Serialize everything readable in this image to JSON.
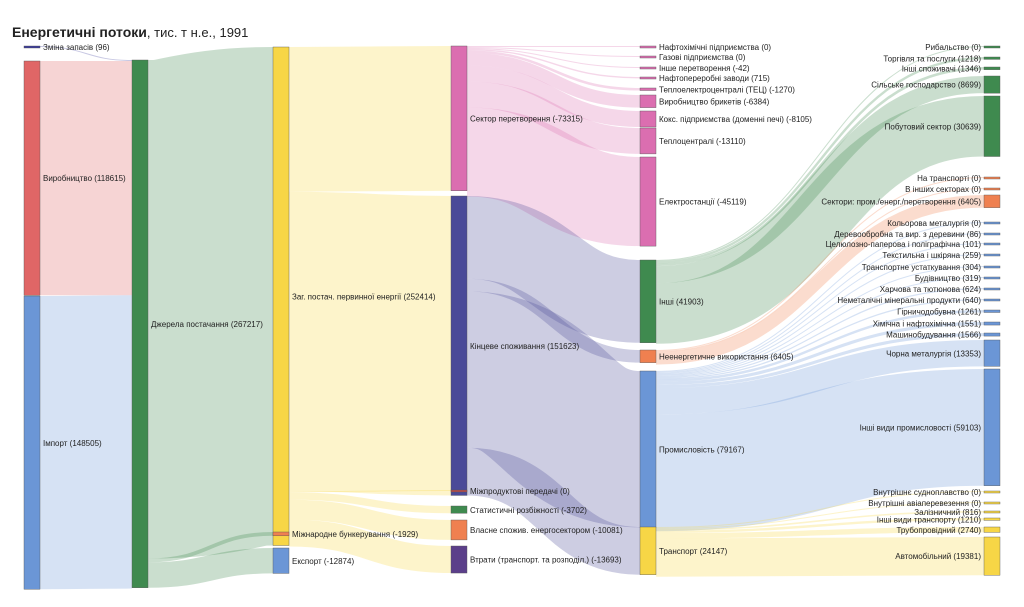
{
  "title": {
    "main": "Енергетичні потоки",
    "sub": ", тис. т н.е., 1991"
  },
  "chart_data": {
    "type": "sankey",
    "title": "Енергетичні потоки, тис. т н.е., 1991",
    "nodes": [
      {
        "id": "zmina",
        "label": "Зміна запасів (96)",
        "value": 96,
        "color": "#3b3b9a"
      },
      {
        "id": "vyrob",
        "label": "Виробництво (118615)",
        "value": 118615,
        "color": "#e06666"
      },
      {
        "id": "import",
        "label": "Імпорт (148505)",
        "value": 148505,
        "color": "#6b96d6"
      },
      {
        "id": "dzhere",
        "label": "Джерела постачання (267217)",
        "value": 267217,
        "color": "#3f8a4f"
      },
      {
        "id": "zag",
        "label": "Заг. постач. первинної енергії (252414)",
        "value": 252414,
        "color": "#f7d646"
      },
      {
        "id": "bunk",
        "label": "Міжнародне бункерування (-1929)",
        "value": 1929,
        "color": "#ef8050"
      },
      {
        "id": "eksport",
        "label": "Експорт (-12874)",
        "value": 12874,
        "color": "#6b96d6"
      },
      {
        "id": "sektor",
        "label": "Сектор перетворення (-73315)",
        "value": 73315,
        "color": "#db6eb0"
      },
      {
        "id": "kinc",
        "label": "Кінцеве споживання (151623)",
        "value": 151623,
        "color": "#4a4a98"
      },
      {
        "id": "mizhprod",
        "label": "Міжпродуктові передачі (0)",
        "value": 0,
        "color": "#b54a4a"
      },
      {
        "id": "stat",
        "label": "Статистичні розбіжності (-3702)",
        "value": 3702,
        "color": "#3f8a4f"
      },
      {
        "id": "vlasne",
        "label": "Власне спожив. енергосектором (-10081)",
        "value": 10081,
        "color": "#ef8050"
      },
      {
        "id": "vtraty",
        "label": "Втрати (транспорт. та розподіл.) (-13693)",
        "value": 13693,
        "color": "#5b3f8a"
      },
      {
        "id": "nafto",
        "label": "Нафтохімічні підприємства (0)",
        "value": 0,
        "color": "#db6eb0"
      },
      {
        "id": "gaz",
        "label": "Газові підприємства (0)",
        "value": 0,
        "color": "#db6eb0"
      },
      {
        "id": "inshe_per",
        "label": "Інше перетворення (-42)",
        "value": 42,
        "color": "#db6eb0"
      },
      {
        "id": "naftoper",
        "label": "Нафтопереробні заводи (715)",
        "value": 715,
        "color": "#db6eb0"
      },
      {
        "id": "tec",
        "label": "Теплоелектроцентралі (ТЕЦ) (-1270)",
        "value": 1270,
        "color": "#db6eb0"
      },
      {
        "id": "bryket",
        "label": "Виробництво брикетів (-6384)",
        "value": 6384,
        "color": "#db6eb0"
      },
      {
        "id": "koks",
        "label": "Кокс. підприємства (доменні печі) (-8105)",
        "value": 8105,
        "color": "#db6eb0"
      },
      {
        "id": "teplo",
        "label": "Теплоцентралі (-13110)",
        "value": 13110,
        "color": "#db6eb0"
      },
      {
        "id": "elektro",
        "label": "Електростанції (-45119)",
        "value": 45119,
        "color": "#db6eb0"
      },
      {
        "id": "inshi",
        "label": "Інші (41903)",
        "value": 41903,
        "color": "#3f8a4f"
      },
      {
        "id": "neenerg",
        "label": "Неенергетичне використання (6405)",
        "value": 6405,
        "color": "#ef8050"
      },
      {
        "id": "prom",
        "label": "Промисловість (79167)",
        "value": 79167,
        "color": "#6b96d6"
      },
      {
        "id": "transp",
        "label": "Транспорт (24147)",
        "value": 24147,
        "color": "#f7d646"
      },
      {
        "id": "ryb",
        "label": "Рибальство (0)",
        "value": 0,
        "color": "#3f8a4f"
      },
      {
        "id": "torg",
        "label": "Торгівля та послуги (1218)",
        "value": 1218,
        "color": "#3f8a4f"
      },
      {
        "id": "inshi_sp",
        "label": "Інші споживачі (1346)",
        "value": 1346,
        "color": "#3f8a4f"
      },
      {
        "id": "silske",
        "label": "Сільське господарство (8699)",
        "value": 8699,
        "color": "#3f8a4f"
      },
      {
        "id": "pobut",
        "label": "Побутовий сектор (30639)",
        "value": 30639,
        "color": "#3f8a4f"
      },
      {
        "id": "na_tr",
        "label": "На транспорті (0)",
        "value": 0,
        "color": "#ef8050"
      },
      {
        "id": "v_inshyh",
        "label": "В інших секторах (0)",
        "value": 0,
        "color": "#ef8050"
      },
      {
        "id": "sektory",
        "label": "Сектори: пром./енерг./перетворення (6405)",
        "value": 6405,
        "color": "#ef8050"
      },
      {
        "id": "kolor",
        "label": "Кольорова металургія (0)",
        "value": 0,
        "color": "#6b96d6"
      },
      {
        "id": "derevo",
        "label": "Деревообробна та вир. з деревини (86)",
        "value": 86,
        "color": "#6b96d6"
      },
      {
        "id": "celul",
        "label": "Целюлозно-паперова і поліграфічна (101)",
        "value": 101,
        "color": "#6b96d6"
      },
      {
        "id": "tekst",
        "label": "Текстильна і шкіряна (259)",
        "value": 259,
        "color": "#6b96d6"
      },
      {
        "id": "transp_ust",
        "label": "Транспортне устаткування (304)",
        "value": 304,
        "color": "#6b96d6"
      },
      {
        "id": "budivn",
        "label": "Будівництво (319)",
        "value": 319,
        "color": "#6b96d6"
      },
      {
        "id": "harch",
        "label": "Харчова та тютюнова (624)",
        "value": 624,
        "color": "#6b96d6"
      },
      {
        "id": "nemet",
        "label": "Неметалічні мінеральні продукти (640)",
        "value": 640,
        "color": "#6b96d6"
      },
      {
        "id": "girnych",
        "label": "Гірничодобувна (1261)",
        "value": 1261,
        "color": "#6b96d6"
      },
      {
        "id": "himich",
        "label": "Хімічна і нафтохімічна (1551)",
        "value": 1551,
        "color": "#6b96d6"
      },
      {
        "id": "mashyn",
        "label": "Машинобудування (1566)",
        "value": 1566,
        "color": "#6b96d6"
      },
      {
        "id": "chorna",
        "label": "Чорна металургія (13353)",
        "value": 13353,
        "color": "#6b96d6"
      },
      {
        "id": "inshi_prom",
        "label": "Інші види промисловості (59103)",
        "value": 59103,
        "color": "#6b96d6"
      },
      {
        "id": "sudno",
        "label": "Внутрішнє судноплавство (0)",
        "value": 0,
        "color": "#f7d646"
      },
      {
        "id": "avia",
        "label": "Внутрішні авіаперевезення (0)",
        "value": 0,
        "color": "#f7d646"
      },
      {
        "id": "zaliz",
        "label": "Залізничний (816)",
        "value": 816,
        "color": "#f7d646"
      },
      {
        "id": "inshi_tr",
        "label": "Інші види транспорту (1210)",
        "value": 1210,
        "color": "#f7d646"
      },
      {
        "id": "trub",
        "label": "Трубопровідний (2740)",
        "value": 2740,
        "color": "#f7d646"
      },
      {
        "id": "avto",
        "label": "Автомобільний (19381)",
        "value": 19381,
        "color": "#f7d646"
      }
    ],
    "links": [
      {
        "source": "zmina",
        "target": "dzhere",
        "value": 96
      },
      {
        "source": "vyrob",
        "target": "dzhere",
        "value": 118615
      },
      {
        "source": "import",
        "target": "dzhere",
        "value": 148505
      },
      {
        "source": "dzhere",
        "target": "zag",
        "value": 252414
      },
      {
        "source": "dzhere",
        "target": "bunk",
        "value": 1929
      },
      {
        "source": "dzhere",
        "target": "eksport",
        "value": 12874
      },
      {
        "source": "zag",
        "target": "sektor",
        "value": 73315
      },
      {
        "source": "zag",
        "target": "kinc",
        "value": 151623
      },
      {
        "source": "zag",
        "target": "mizhprod",
        "value": 0
      },
      {
        "source": "zag",
        "target": "stat",
        "value": 3702
      },
      {
        "source": "zag",
        "target": "vlasne",
        "value": 10081
      },
      {
        "source": "zag",
        "target": "vtraty",
        "value": 13693
      },
      {
        "source": "sektor",
        "target": "nafto",
        "value": 0
      },
      {
        "source": "sektor",
        "target": "gaz",
        "value": 0
      },
      {
        "source": "sektor",
        "target": "inshe_per",
        "value": 42
      },
      {
        "source": "sektor",
        "target": "naftoper",
        "value": 715
      },
      {
        "source": "sektor",
        "target": "tec",
        "value": 1270
      },
      {
        "source": "sektor",
        "target": "bryket",
        "value": 6384
      },
      {
        "source": "sektor",
        "target": "koks",
        "value": 8105
      },
      {
        "source": "sektor",
        "target": "teplo",
        "value": 13110
      },
      {
        "source": "sektor",
        "target": "elektro",
        "value": 45119
      },
      {
        "source": "kinc",
        "target": "inshi",
        "value": 41903
      },
      {
        "source": "kinc",
        "target": "neenerg",
        "value": 6405
      },
      {
        "source": "kinc",
        "target": "prom",
        "value": 79167
      },
      {
        "source": "kinc",
        "target": "transp",
        "value": 24147
      },
      {
        "source": "inshi",
        "target": "ryb",
        "value": 0
      },
      {
        "source": "inshi",
        "target": "torg",
        "value": 1218
      },
      {
        "source": "inshi",
        "target": "inshi_sp",
        "value": 1346
      },
      {
        "source": "inshi",
        "target": "silske",
        "value": 8699
      },
      {
        "source": "inshi",
        "target": "pobut",
        "value": 30639
      },
      {
        "source": "neenerg",
        "target": "na_tr",
        "value": 0
      },
      {
        "source": "neenerg",
        "target": "v_inshyh",
        "value": 0
      },
      {
        "source": "neenerg",
        "target": "sektory",
        "value": 6405
      },
      {
        "source": "prom",
        "target": "kolor",
        "value": 0
      },
      {
        "source": "prom",
        "target": "derevo",
        "value": 86
      },
      {
        "source": "prom",
        "target": "celul",
        "value": 101
      },
      {
        "source": "prom",
        "target": "tekst",
        "value": 259
      },
      {
        "source": "prom",
        "target": "transp_ust",
        "value": 304
      },
      {
        "source": "prom",
        "target": "budivn",
        "value": 319
      },
      {
        "source": "prom",
        "target": "harch",
        "value": 624
      },
      {
        "source": "prom",
        "target": "nemet",
        "value": 640
      },
      {
        "source": "prom",
        "target": "girnych",
        "value": 1261
      },
      {
        "source": "prom",
        "target": "himich",
        "value": 1551
      },
      {
        "source": "prom",
        "target": "mashyn",
        "value": 1566
      },
      {
        "source": "prom",
        "target": "chorna",
        "value": 13353
      },
      {
        "source": "prom",
        "target": "inshi_prom",
        "value": 59103
      },
      {
        "source": "transp",
        "target": "sudno",
        "value": 0
      },
      {
        "source": "transp",
        "target": "avia",
        "value": 0
      },
      {
        "source": "transp",
        "target": "zaliz",
        "value": 816
      },
      {
        "source": "transp",
        "target": "inshi_tr",
        "value": 1210
      },
      {
        "source": "transp",
        "target": "trub",
        "value": 2740
      },
      {
        "source": "transp",
        "target": "avto",
        "value": 19381
      }
    ]
  }
}
